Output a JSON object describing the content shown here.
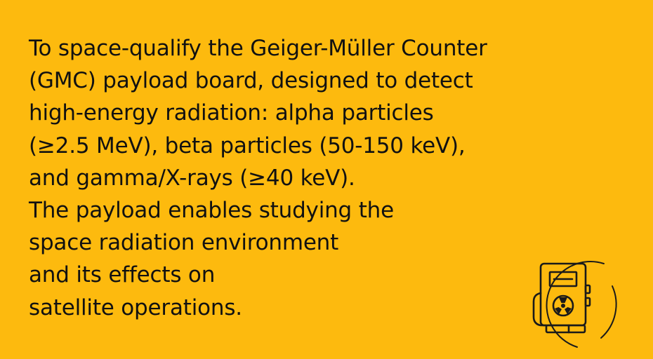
{
  "colors": {
    "background": "#FDBA0E",
    "text": "#111111",
    "icon_stroke": "#1A1A1A"
  },
  "description": {
    "lines": [
      "To space-qualify the Geiger-Müller Counter",
      "(GMC) payload board, designed to detect",
      "high-energy radiation: alpha particles",
      "(≥2.5 MeV), beta particles (50-150 keV),",
      "and gamma/X-rays (≥40 keV).",
      "The payload enables studying the",
      "space radiation environment",
      "and its effects on",
      "satellite operations."
    ]
  },
  "icon": {
    "name": "geiger-counter-icon"
  }
}
